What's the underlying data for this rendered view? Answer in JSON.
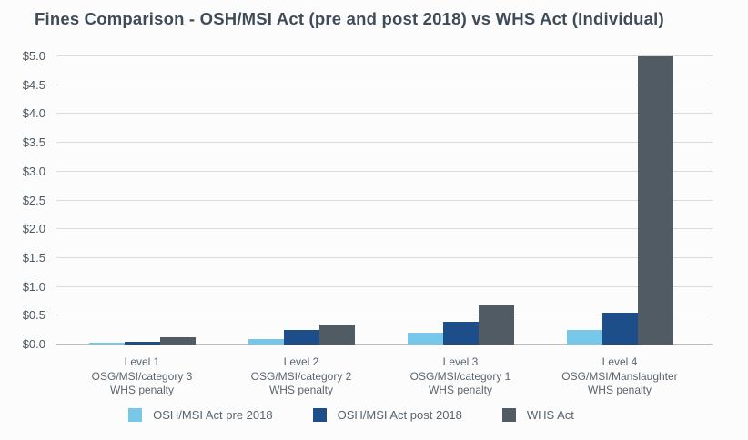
{
  "title": "Fines Comparison - OSH/MSI Act (pre and post 2018) vs WHS Act (Individual)",
  "colors": {
    "background": "#fcfcfc",
    "title_text": "#3f4c58",
    "axis_text": "#4e5860",
    "category_text": "#5a646d",
    "gridline": "#d8dadb",
    "baseline": "#b9bdc0",
    "series_pre_2018": "#76c7e8",
    "series_post_2018": "#1d4e89",
    "series_whs": "#505b64"
  },
  "chart_data": {
    "type": "bar",
    "title": "Fines Comparison - OSH/MSI Act (pre and post 2018) vs WHS Act (Individual)",
    "categories": [
      [
        "Level 1",
        "OSG/MSI/category 3",
        "WHS penalty"
      ],
      [
        "Level 2",
        "OSG/MSI/category 2",
        "WHS penalty"
      ],
      [
        "Level 3",
        "OSG/MSI/category 1",
        "WHS penalty"
      ],
      [
        "Level 4",
        "OSG/MSI/Manslaughter",
        "WHS penalty"
      ]
    ],
    "series": [
      {
        "name": "OSH/MSI Act pre 2018",
        "color": "#76c7e8",
        "values": [
          0.025,
          0.1,
          0.2,
          0.25
        ]
      },
      {
        "name": "OSH/MSI Act post 2018",
        "color": "#1d4e89",
        "values": [
          0.05,
          0.25,
          0.4,
          0.55
        ]
      },
      {
        "name": "WHS Act",
        "color": "#505b64",
        "values": [
          0.12,
          0.35,
          0.68,
          5.0
        ]
      }
    ],
    "xlabel": "",
    "ylabel": "",
    "ylim": [
      0,
      5
    ],
    "ytick_step": 0.5,
    "yticks": [
      "$0.0",
      "$0.5",
      "$1.0",
      "$1.5",
      "$2.0",
      "$2.5",
      "$3.0",
      "$3.5",
      "$4.0",
      "$4.5",
      "$5.0"
    ],
    "grid": true,
    "legend_position": "bottom"
  }
}
